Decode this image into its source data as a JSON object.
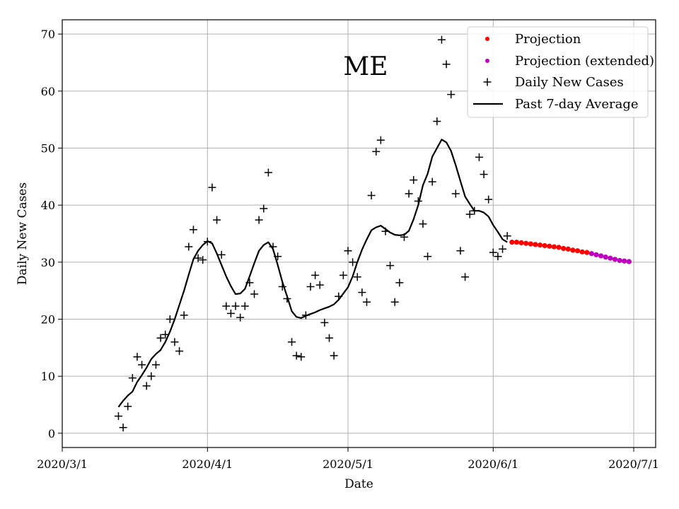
{
  "chart_data": {
    "type": "line",
    "title": "ME",
    "xlabel": "Date",
    "ylabel": "Daily New Cases",
    "x_range": [
      "2020-03-01",
      "2020-07-01"
    ],
    "x_ticks": [
      "2020-03-01",
      "2020-04-01",
      "2020-05-01",
      "2020-06-01",
      "2020-07-01"
    ],
    "x_tick_labels": [
      "2020/3/1",
      "2020/4/1",
      "2020/5/1",
      "2020/6/1",
      "2020/7/1"
    ],
    "ylim": [
      -2.5,
      72.5
    ],
    "y_ticks": [
      0,
      10,
      20,
      30,
      40,
      50,
      60,
      70
    ],
    "grid": true,
    "legend_position": "top-right",
    "colors": {
      "projection": "#ff0000",
      "projection_extended": "#bf00bf",
      "daily": "#000000",
      "average": "#000000",
      "grid": "#b0b0b0"
    },
    "series": [
      {
        "name": "Daily New Cases",
        "kind": "plus",
        "points": [
          [
            "2020-03-13",
            3
          ],
          [
            "2020-03-14",
            1
          ],
          [
            "2020-03-15",
            4.7
          ],
          [
            "2020-03-16",
            9.7
          ],
          [
            "2020-03-17",
            13.4
          ],
          [
            "2020-03-18",
            12
          ],
          [
            "2020-03-19",
            8.3
          ],
          [
            "2020-03-20",
            10
          ],
          [
            "2020-03-21",
            12
          ],
          [
            "2020-03-22",
            16.7
          ],
          [
            "2020-03-23",
            17.3
          ],
          [
            "2020-03-24",
            20
          ],
          [
            "2020-03-25",
            16
          ],
          [
            "2020-03-26",
            14.4
          ],
          [
            "2020-03-27",
            20.7
          ],
          [
            "2020-03-28",
            32.7
          ],
          [
            "2020-03-29",
            35.7
          ],
          [
            "2020-03-30",
            30.7
          ],
          [
            "2020-03-31",
            30.4
          ],
          [
            "2020-04-01",
            33.6
          ],
          [
            "2020-04-02",
            43.1
          ],
          [
            "2020-04-03",
            37.4
          ],
          [
            "2020-04-04",
            31.3
          ],
          [
            "2020-04-05",
            22.3
          ],
          [
            "2020-04-06",
            21
          ],
          [
            "2020-04-07",
            22.3
          ],
          [
            "2020-04-08",
            20.3
          ],
          [
            "2020-04-09",
            22.3
          ],
          [
            "2020-04-10",
            26.4
          ],
          [
            "2020-04-11",
            24.4
          ],
          [
            "2020-04-12",
            37.4
          ],
          [
            "2020-04-13",
            39.4
          ],
          [
            "2020-04-14",
            45.7
          ],
          [
            "2020-04-15",
            32.7
          ],
          [
            "2020-04-16",
            31
          ],
          [
            "2020-04-17",
            25.7
          ],
          [
            "2020-04-18",
            23.6
          ],
          [
            "2020-04-19",
            16
          ],
          [
            "2020-04-20",
            13.6
          ],
          [
            "2020-04-21",
            13.4
          ],
          [
            "2020-04-22",
            20.7
          ],
          [
            "2020-04-23",
            25.7
          ],
          [
            "2020-04-24",
            27.7
          ],
          [
            "2020-04-25",
            26
          ],
          [
            "2020-04-26",
            19.4
          ],
          [
            "2020-04-27",
            16.7
          ],
          [
            "2020-04-28",
            13.6
          ],
          [
            "2020-04-29",
            24
          ],
          [
            "2020-04-30",
            27.7
          ],
          [
            "2020-05-01",
            32
          ],
          [
            "2020-05-02",
            30
          ],
          [
            "2020-05-03",
            27.4
          ],
          [
            "2020-05-04",
            24.7
          ],
          [
            "2020-05-05",
            23
          ],
          [
            "2020-05-06",
            41.7
          ],
          [
            "2020-05-07",
            49.4
          ],
          [
            "2020-05-08",
            51.4
          ],
          [
            "2020-05-09",
            35.4
          ],
          [
            "2020-05-10",
            29.4
          ],
          [
            "2020-05-11",
            23
          ],
          [
            "2020-05-12",
            26.4
          ],
          [
            "2020-05-13",
            34.4
          ],
          [
            "2020-05-14",
            42
          ],
          [
            "2020-05-15",
            44.4
          ],
          [
            "2020-05-16",
            40.7
          ],
          [
            "2020-05-17",
            36.7
          ],
          [
            "2020-05-18",
            31
          ],
          [
            "2020-05-19",
            44.1
          ],
          [
            "2020-05-20",
            54.7
          ],
          [
            "2020-05-21",
            69
          ],
          [
            "2020-05-22",
            64.7
          ],
          [
            "2020-05-23",
            59.4
          ],
          [
            "2020-05-24",
            42
          ],
          [
            "2020-05-25",
            32
          ],
          [
            "2020-05-26",
            27.4
          ],
          [
            "2020-05-27",
            38.4
          ],
          [
            "2020-05-28",
            39
          ],
          [
            "2020-05-29",
            48.4
          ],
          [
            "2020-05-30",
            45.4
          ],
          [
            "2020-05-31",
            41
          ],
          [
            "2020-06-01",
            31.7
          ],
          [
            "2020-06-02",
            31
          ],
          [
            "2020-06-03",
            32.3
          ],
          [
            "2020-06-04",
            34.6
          ]
        ]
      },
      {
        "name": "Past 7-day Average",
        "kind": "line",
        "points": [
          [
            "2020-03-13",
            4.6
          ],
          [
            "2020-03-14",
            5.7
          ],
          [
            "2020-03-15",
            6.6
          ],
          [
            "2020-03-16",
            7.3
          ],
          [
            "2020-03-17",
            9
          ],
          [
            "2020-03-18",
            10.2
          ],
          [
            "2020-03-19",
            11.5
          ],
          [
            "2020-03-20",
            13
          ],
          [
            "2020-03-21",
            13.9
          ],
          [
            "2020-03-22",
            14.6
          ],
          [
            "2020-03-23",
            16
          ],
          [
            "2020-03-24",
            17.8
          ],
          [
            "2020-03-25",
            20
          ],
          [
            "2020-03-26",
            22.5
          ],
          [
            "2020-03-27",
            25
          ],
          [
            "2020-03-28",
            27.8
          ],
          [
            "2020-03-29",
            30.5
          ],
          [
            "2020-03-30",
            32
          ],
          [
            "2020-03-31",
            33
          ],
          [
            "2020-04-01",
            33.7
          ],
          [
            "2020-04-02",
            33.3
          ],
          [
            "2020-04-03",
            31.5
          ],
          [
            "2020-04-04",
            29.5
          ],
          [
            "2020-04-05",
            27.5
          ],
          [
            "2020-04-06",
            25.8
          ],
          [
            "2020-04-07",
            24.4
          ],
          [
            "2020-04-08",
            24.5
          ],
          [
            "2020-04-09",
            25.3
          ],
          [
            "2020-04-10",
            27.5
          ],
          [
            "2020-04-11",
            29.8
          ],
          [
            "2020-04-12",
            32
          ],
          [
            "2020-04-13",
            33
          ],
          [
            "2020-04-14",
            33.5
          ],
          [
            "2020-04-15",
            32.3
          ],
          [
            "2020-04-16",
            29.5
          ],
          [
            "2020-04-17",
            26.5
          ],
          [
            "2020-04-18",
            24
          ],
          [
            "2020-04-19",
            21.4
          ],
          [
            "2020-04-20",
            20.4
          ],
          [
            "2020-04-21",
            20.2
          ],
          [
            "2020-04-22",
            20.6
          ],
          [
            "2020-04-23",
            20.9
          ],
          [
            "2020-04-24",
            21.2
          ],
          [
            "2020-04-25",
            21.6
          ],
          [
            "2020-04-26",
            21.9
          ],
          [
            "2020-04-27",
            22.2
          ],
          [
            "2020-04-28",
            22.6
          ],
          [
            "2020-04-29",
            23.4
          ],
          [
            "2020-04-30",
            24.5
          ],
          [
            "2020-05-01",
            25.6
          ],
          [
            "2020-05-02",
            27.5
          ],
          [
            "2020-05-03",
            30
          ],
          [
            "2020-05-04",
            32.2
          ],
          [
            "2020-05-05",
            34
          ],
          [
            "2020-05-06",
            35.6
          ],
          [
            "2020-05-07",
            36.1
          ],
          [
            "2020-05-08",
            36.4
          ],
          [
            "2020-05-09",
            35.8
          ],
          [
            "2020-05-10",
            35.2
          ],
          [
            "2020-05-11",
            34.8
          ],
          [
            "2020-05-12",
            34.7
          ],
          [
            "2020-05-13",
            34.8
          ],
          [
            "2020-05-14",
            35.5
          ],
          [
            "2020-05-15",
            37.5
          ],
          [
            "2020-05-16",
            40
          ],
          [
            "2020-05-17",
            43.5
          ],
          [
            "2020-05-18",
            45.5
          ],
          [
            "2020-05-19",
            48.5
          ],
          [
            "2020-05-20",
            50
          ],
          [
            "2020-05-21",
            51.5
          ],
          [
            "2020-05-22",
            51
          ],
          [
            "2020-05-23",
            49.5
          ],
          [
            "2020-05-24",
            47
          ],
          [
            "2020-05-25",
            44.2
          ],
          [
            "2020-05-26",
            41.5
          ],
          [
            "2020-05-27",
            40.2
          ],
          [
            "2020-05-28",
            39
          ],
          [
            "2020-05-29",
            39
          ],
          [
            "2020-05-30",
            38.7
          ],
          [
            "2020-05-31",
            38
          ],
          [
            "2020-06-01",
            36.5
          ],
          [
            "2020-06-02",
            35.3
          ],
          [
            "2020-06-03",
            34
          ],
          [
            "2020-06-04",
            33.5
          ]
        ]
      },
      {
        "name": "Projection",
        "kind": "dot",
        "points": [
          [
            "2020-06-05",
            33.5
          ],
          [
            "2020-06-06",
            33.5
          ],
          [
            "2020-06-07",
            33.4
          ],
          [
            "2020-06-08",
            33.3
          ],
          [
            "2020-06-09",
            33.2
          ],
          [
            "2020-06-10",
            33.1
          ],
          [
            "2020-06-11",
            33
          ],
          [
            "2020-06-12",
            32.9
          ],
          [
            "2020-06-13",
            32.8
          ],
          [
            "2020-06-14",
            32.7
          ],
          [
            "2020-06-15",
            32.6
          ],
          [
            "2020-06-16",
            32.4
          ],
          [
            "2020-06-17",
            32.3
          ],
          [
            "2020-06-18",
            32.1
          ],
          [
            "2020-06-19",
            32
          ],
          [
            "2020-06-20",
            31.8
          ],
          [
            "2020-06-21",
            31.7
          ]
        ]
      },
      {
        "name": "Projection (extended)",
        "kind": "dot",
        "points": [
          [
            "2020-06-22",
            31.5
          ],
          [
            "2020-06-23",
            31.3
          ],
          [
            "2020-06-24",
            31.1
          ],
          [
            "2020-06-25",
            30.9
          ],
          [
            "2020-06-26",
            30.7
          ],
          [
            "2020-06-27",
            30.5
          ],
          [
            "2020-06-28",
            30.3
          ],
          [
            "2020-06-29",
            30.2
          ],
          [
            "2020-06-30",
            30.1
          ]
        ]
      }
    ],
    "legend": [
      "Projection",
      "Projection (extended)",
      "Daily New Cases",
      "Past 7-day Average"
    ]
  }
}
